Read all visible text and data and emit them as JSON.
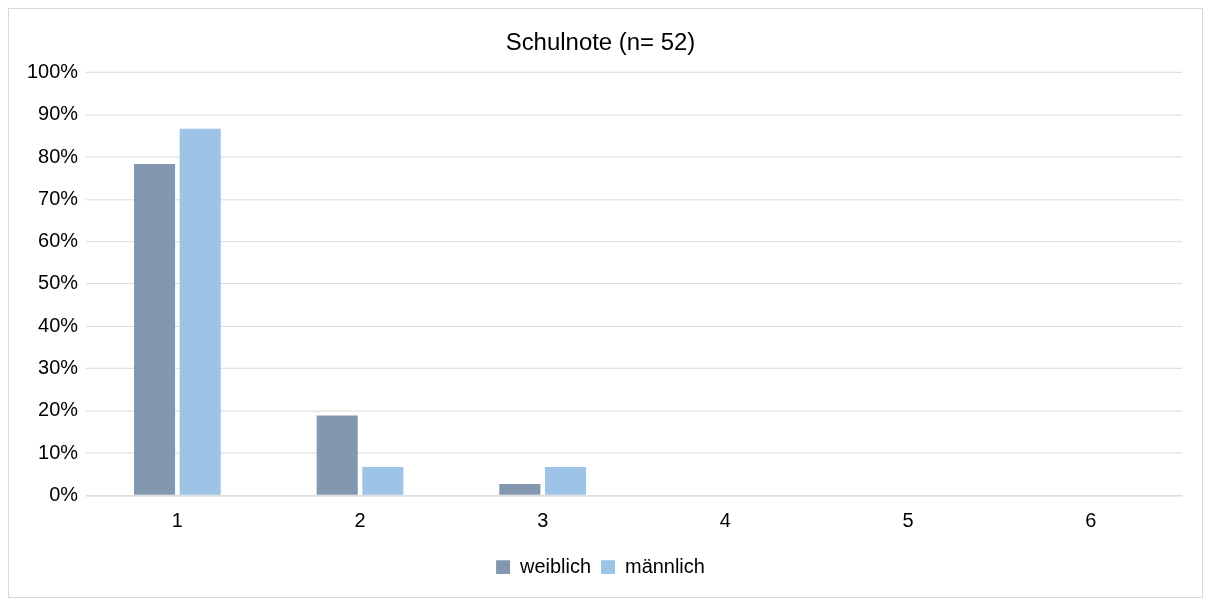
{
  "chart_data": {
    "type": "bar",
    "title": "Schulnote (n= 52)",
    "categories": [
      "1",
      "2",
      "3",
      "4",
      "5",
      "6"
    ],
    "series": [
      {
        "name": "weiblich",
        "color": "#8497b0",
        "values": [
          78.4,
          18.9,
          2.7,
          0,
          0,
          0
        ]
      },
      {
        "name": "männlich",
        "color": "#9dc3e6",
        "values": [
          86.7,
          6.7,
          6.7,
          0,
          0,
          0
        ]
      }
    ],
    "ylim": [
      0,
      100
    ],
    "yticks": [
      {
        "value": 0,
        "label": "0%"
      },
      {
        "value": 10,
        "label": "10%"
      },
      {
        "value": 20,
        "label": "20%"
      },
      {
        "value": 30,
        "label": "30%"
      },
      {
        "value": 40,
        "label": "40%"
      },
      {
        "value": 50,
        "label": "50%"
      },
      {
        "value": 60,
        "label": "60%"
      },
      {
        "value": 70,
        "label": "70%"
      },
      {
        "value": 80,
        "label": "80%"
      },
      {
        "value": 90,
        "label": "90%"
      },
      {
        "value": 100,
        "label": "100%"
      }
    ],
    "grid": "y",
    "legend": "bottom"
  }
}
